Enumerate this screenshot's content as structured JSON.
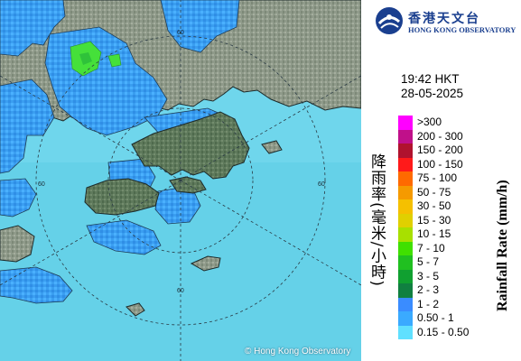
{
  "logo": {
    "name_zh": "香港天文台",
    "name_en": "HONG KONG OBSERVATORY"
  },
  "timestamp": {
    "time": "19:42 HKT",
    "date": "28-05-2025"
  },
  "radar": {
    "range_ring_labels": [
      "60",
      "60",
      "60",
      "60"
    ],
    "copyright": "© Hong Kong Observatory"
  },
  "legend": {
    "title_zh": "降雨率(毫米/小時)",
    "title_en": "Rainfall Rate (mm/h)",
    "levels": [
      {
        "label": ">300",
        "color": "#ff00ff"
      },
      {
        "label": "200 - 300",
        "color": "#c0108a"
      },
      {
        "label": "150 - 200",
        "color": "#b0122e"
      },
      {
        "label": "100 - 150",
        "color": "#ff1a1a"
      },
      {
        "label": "75 - 100",
        "color": "#ff6a00"
      },
      {
        "label": "50 - 75",
        "color": "#f59a00"
      },
      {
        "label": "30 - 50",
        "color": "#f5c000"
      },
      {
        "label": "15 - 30",
        "color": "#e0d000"
      },
      {
        "label": "10 - 15",
        "color": "#a8e000"
      },
      {
        "label": "7 - 10",
        "color": "#40e000"
      },
      {
        "label": "5 - 7",
        "color": "#20c020"
      },
      {
        "label": "3 - 5",
        "color": "#10a030"
      },
      {
        "label": "2 - 3",
        "color": "#108040"
      },
      {
        "label": "1 - 2",
        "color": "#3a8cff"
      },
      {
        "label": "0.50 - 1",
        "color": "#3aaaff"
      },
      {
        "label": "0.15 - 0.50",
        "color": "#60e0ff"
      }
    ]
  }
}
